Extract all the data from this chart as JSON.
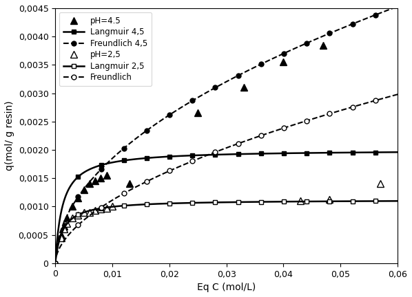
{
  "title": "",
  "xlabel": "Eq C (mol/L)",
  "ylabel": "q(mol/ g resin)",
  "xlim": [
    0,
    0.06
  ],
  "ylim": [
    0,
    0.0045
  ],
  "yticks": [
    0,
    0.0005,
    0.001,
    0.0015,
    0.002,
    0.0025,
    0.003,
    0.0035,
    0.004,
    0.0045
  ],
  "xticks": [
    0,
    0.01,
    0.02,
    0.03,
    0.04,
    0.05,
    0.06
  ],
  "ph45_x": [
    0.001,
    0.0015,
    0.002,
    0.003,
    0.004,
    0.005,
    0.006,
    0.007,
    0.008,
    0.009,
    0.013,
    0.025,
    0.033,
    0.04,
    0.047
  ],
  "ph45_y": [
    0.0005,
    0.00065,
    0.0008,
    0.001,
    0.00115,
    0.0013,
    0.0014,
    0.00145,
    0.0015,
    0.00155,
    0.0014,
    0.00265,
    0.0031,
    0.00355,
    0.00385
  ],
  "ph25_x": [
    0.001,
    0.0015,
    0.002,
    0.003,
    0.004,
    0.005,
    0.006,
    0.007,
    0.008,
    0.009,
    0.01,
    0.043,
    0.048,
    0.057
  ],
  "ph25_y": [
    0.00045,
    0.0006,
    0.0007,
    0.0008,
    0.00085,
    0.0009,
    0.0009,
    0.00093,
    0.00095,
    0.00097,
    0.001,
    0.0011,
    0.00113,
    0.0014
  ],
  "langmuir45_qmax": 0.002,
  "langmuir45_K": 800,
  "langmuir25_qmax": 0.00112,
  "langmuir25_K": 800,
  "freundlich45_Kf": 0.0185,
  "freundlich45_n": 0.5,
  "freundlich25_Kf": 0.014,
  "freundlich25_n": 0.55,
  "marker_every_lang45": 40,
  "marker_every_lang25": 40,
  "marker_every_freund45": 40,
  "marker_every_freund25": 40
}
